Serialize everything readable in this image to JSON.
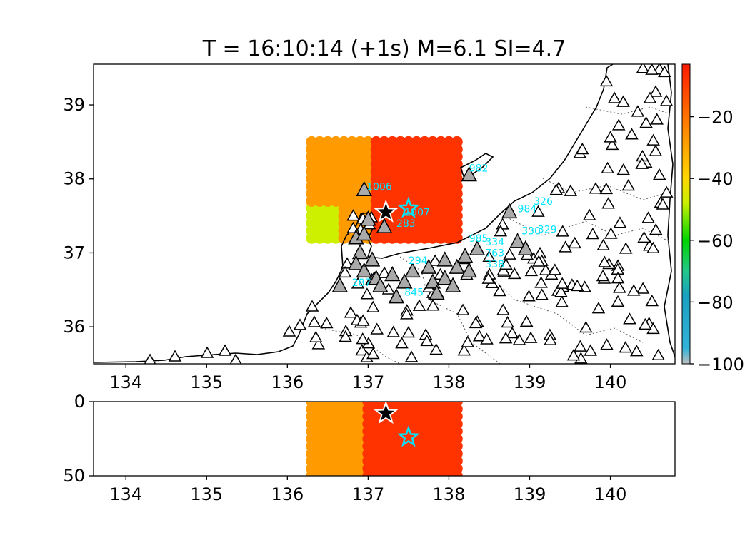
{
  "figure": {
    "title": "T = 16:10:14 (+1s) M=6.1 SI=4.7"
  },
  "chart_data": [
    {
      "name": "map-view",
      "type": "scatter",
      "title": "T = 16:10:14 (+1s) M=6.1 SI=4.7",
      "xlabel": "",
      "ylabel": "",
      "xlim": [
        133.6,
        140.8
      ],
      "ylim": [
        35.5,
        39.55
      ],
      "xticks": [
        "134",
        "135",
        "136",
        "137",
        "138",
        "139",
        "140"
      ],
      "yticks": [
        "36",
        "37",
        "38",
        "39"
      ],
      "grid": false,
      "grid_region": {
        "lon": [
          136.3,
          138.1
        ],
        "lat": [
          37.2,
          38.5
        ],
        "step": 0.1
      },
      "epicenter": {
        "lon": 137.22,
        "lat": 37.55
      },
      "estimated_source": {
        "lon": 137.5,
        "lat": 37.6
      },
      "triggered_stations": [
        [
          136.95,
          37.85
        ],
        [
          137.0,
          37.45
        ],
        [
          136.85,
          37.2
        ],
        [
          136.95,
          37.25
        ],
        [
          136.9,
          37.0
        ],
        [
          136.85,
          36.85
        ],
        [
          136.95,
          36.75
        ],
        [
          137.05,
          36.9
        ],
        [
          137.1,
          36.65
        ],
        [
          137.15,
          36.55
        ],
        [
          136.65,
          36.55
        ],
        [
          137.3,
          36.7
        ],
        [
          137.45,
          36.6
        ],
        [
          137.55,
          36.75
        ],
        [
          137.35,
          36.4
        ],
        [
          137.8,
          36.6
        ],
        [
          137.95,
          36.65
        ],
        [
          138.05,
          36.55
        ],
        [
          137.85,
          36.45
        ],
        [
          137.75,
          36.8
        ],
        [
          137.95,
          36.9
        ],
        [
          138.1,
          36.8
        ],
        [
          138.25,
          36.75
        ],
        [
          138.2,
          36.95
        ],
        [
          138.35,
          37.05
        ],
        [
          138.85,
          37.15
        ],
        [
          138.95,
          37.05
        ],
        [
          138.75,
          37.55
        ],
        [
          138.25,
          38.05
        ],
        [
          137.2,
          37.35
        ]
      ],
      "station_labels": [
        {
          "text": "1006",
          "lon": 136.98,
          "lat": 37.85
        },
        {
          "text": "982",
          "lon": 138.25,
          "lat": 38.1
        },
        {
          "text": "1007",
          "lon": 137.45,
          "lat": 37.5
        },
        {
          "text": "326",
          "lon": 139.05,
          "lat": 37.65
        },
        {
          "text": "984",
          "lon": 138.85,
          "lat": 37.55
        },
        {
          "text": "330",
          "lon": 138.9,
          "lat": 37.25
        },
        {
          "text": "329",
          "lon": 139.1,
          "lat": 37.27
        },
        {
          "text": "985",
          "lon": 138.25,
          "lat": 37.15
        },
        {
          "text": "334",
          "lon": 138.45,
          "lat": 37.1
        },
        {
          "text": "763",
          "lon": 138.45,
          "lat": 36.95
        },
        {
          "text": "338",
          "lon": 138.45,
          "lat": 36.8
        },
        {
          "text": "294",
          "lon": 137.5,
          "lat": 36.85
        },
        {
          "text": "287",
          "lon": 136.8,
          "lat": 36.55
        },
        {
          "text": "845",
          "lon": 137.45,
          "lat": 36.42
        },
        {
          "text": "283",
          "lon": 137.35,
          "lat": 37.35
        }
      ],
      "grid_colors": {
        "west": "#cdf000",
        "mid": "#ff9b00",
        "east": "#ff3300"
      }
    },
    {
      "name": "depth-section",
      "type": "scatter",
      "xlabel": "",
      "ylabel": "",
      "xlim": [
        133.6,
        140.8
      ],
      "ylim": [
        50,
        0
      ],
      "xticks": [
        "134",
        "135",
        "136",
        "137",
        "138",
        "139",
        "140"
      ],
      "yticks": [
        "0",
        "50"
      ],
      "grid_region": {
        "lon": [
          136.3,
          138.1
        ],
        "depth": [
          0,
          50
        ]
      },
      "epicenter": {
        "lon": 137.22,
        "depth": 8
      },
      "estimated_source": {
        "lon": 137.5,
        "depth": 24
      }
    },
    {
      "name": "colorbar",
      "type": "heatmap",
      "range": [
        -100,
        -3
      ],
      "ticks": [
        "−20",
        "−40",
        "−60",
        "−80",
        "−100"
      ],
      "tick_values": [
        -20,
        -40,
        -60,
        -80,
        -100
      ],
      "stops": [
        {
          "value": -100,
          "color": "#bfbfbf"
        },
        {
          "value": -95,
          "color": "#33b3d9"
        },
        {
          "value": -78,
          "color": "#1aa0c0"
        },
        {
          "value": -70,
          "color": "#22c88a"
        },
        {
          "value": -60,
          "color": "#00d400"
        },
        {
          "value": -48,
          "color": "#c8f000"
        },
        {
          "value": -40,
          "color": "#ffd700"
        },
        {
          "value": -25,
          "color": "#ff8c00"
        },
        {
          "value": -3,
          "color": "#ff1a00"
        }
      ]
    }
  ]
}
